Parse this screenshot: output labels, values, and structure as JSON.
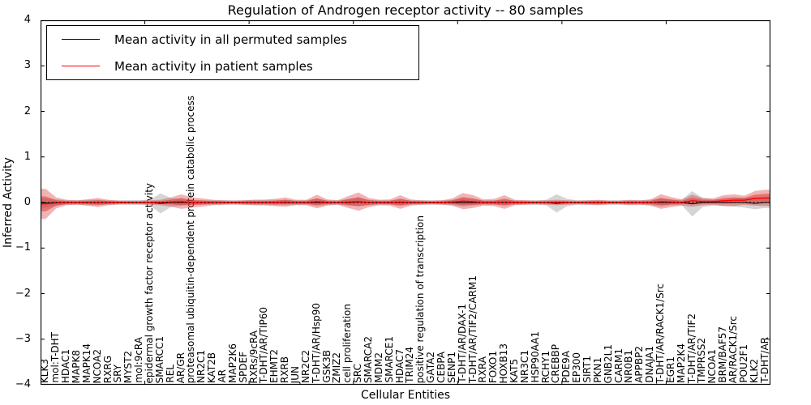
{
  "figure": {
    "title": "Regulation of Androgen receptor activity -- 80 samples",
    "xlabel": "Cellular Entities",
    "ylabel": "Inferred Activity"
  },
  "legend": {
    "items": [
      {
        "label": "Mean activity in all permuted samples",
        "color": "#000000"
      },
      {
        "label": "Mean activity in patient samples",
        "color": "#ff0000"
      }
    ]
  },
  "chart_data": {
    "type": "area",
    "title": "Regulation of Androgen receptor activity -- 80 samples",
    "xlabel": "Cellular Entities",
    "ylabel": "Inferred Activity",
    "ylim": [
      -4,
      4
    ],
    "ytick_labels": [
      "4",
      "3",
      "2",
      "1",
      "0",
      "−1",
      "−2",
      "−3",
      "−4"
    ],
    "grid": false,
    "legend_position": "upper left",
    "zero_line_style": "black dotted",
    "colors": {
      "permuted_band": "#969696",
      "patient_band": "#d62728",
      "permuted_mean": "#000000",
      "patient_mean": "#ff0000"
    },
    "categories": [
      "KLK3",
      "mol:T-DHT",
      "HDAC1",
      "MAPK8",
      "MAPK14",
      "NCOA2",
      "RXRG",
      "SRY",
      "MYST2",
      "mol:9cRA",
      "epidermal growth factor receptor activity",
      "SMARCC1",
      "REL",
      "AR/GR",
      "proteasomal ubiquitin-dependent protein catabolic process",
      "NR2C1",
      "KAT2B",
      "AR",
      "MAP2K6",
      "SPDEF",
      "RXRs/9cRA",
      "T-DHT/AR/TIP60",
      "EHMT2",
      "RXRB",
      "JUN",
      "NR2C2",
      "T-DHT/AR/Hsp90",
      "GSK3B",
      "ZMIZ2",
      "cell proliferation",
      "SRC",
      "SMARCA2",
      "MDM2",
      "SMARCE1",
      "HDAC7",
      "TRIM24",
      "positive regulation of transcription",
      "GATA2",
      "CEBPA",
      "SENP1",
      "T-DHT/AR/DAX-1",
      "T-DHT/AR/TIF2/CARM1",
      "RXRA",
      "FOXO1",
      "HOXB13",
      "KAT5",
      "NR3C1",
      "HSP90AA1",
      "RCHY1",
      "CREBBP",
      "PDE9A",
      "EP300",
      "SIRT1",
      "PKN1",
      "GNB2L1",
      "CARM1",
      "NR0B1",
      "APPBP2",
      "DNAJA1",
      "T-DHT/AR/RACK1/Src",
      "EGR1",
      "MAP2K4",
      "T-DHT/AR/TIF2",
      "TMPRSS2",
      "NCOA1",
      "BRM/BAF57",
      "AR/RACK1/Src",
      "POU2F1",
      "KLK2",
      "T-DHT/AR"
    ],
    "series": [
      {
        "name": "Mean activity in all permuted samples",
        "role": "mean_line",
        "color": "#000000",
        "values": [
          -0.01,
          0,
          0,
          0,
          0,
          0,
          0,
          0,
          0,
          0,
          0,
          -0.02,
          0,
          0,
          0,
          0,
          0,
          0,
          0,
          0,
          0,
          0,
          0,
          0,
          0,
          0,
          0,
          0,
          0,
          0,
          0.01,
          0,
          0,
          0,
          0,
          0,
          0,
          0,
          0,
          0,
          0,
          0,
          0,
          0,
          0,
          0,
          0,
          0,
          0,
          -0.02,
          0,
          0,
          0,
          0,
          0,
          0,
          0,
          0,
          0,
          0,
          0,
          0,
          -0.03,
          0,
          0,
          0,
          0,
          0,
          -0.02,
          0
        ]
      },
      {
        "name": "Mean activity in patient samples",
        "role": "mean_line",
        "color": "#ff0000",
        "values": [
          -0.03,
          -0.01,
          0,
          0,
          0,
          0,
          0,
          0,
          0,
          0,
          0,
          0,
          0.01,
          0.02,
          0,
          0,
          0,
          0,
          0,
          0,
          0,
          0,
          0,
          0.01,
          0,
          0,
          0.02,
          0,
          0,
          0.01,
          0.02,
          0,
          0,
          0,
          0.01,
          0,
          0,
          0,
          0,
          0.01,
          0.03,
          0.02,
          0,
          0,
          0.01,
          0,
          0,
          0,
          0,
          0,
          0,
          0,
          0,
          0,
          0,
          0,
          0,
          0,
          0,
          0.02,
          0.01,
          0,
          0.04,
          0.02,
          0.02,
          0.04,
          0.05,
          0.05,
          0.09,
          0.1
        ]
      },
      {
        "name": "Permuted samples spread (half-width)",
        "role": "band",
        "color": "#969696",
        "values": [
          0.1,
          0.07,
          0.05,
          0.05,
          0.06,
          0.06,
          0.05,
          0.05,
          0.05,
          0.05,
          0.06,
          0.22,
          0.1,
          0.07,
          0.05,
          0.05,
          0.05,
          0.05,
          0.05,
          0.05,
          0.06,
          0.06,
          0.06,
          0.06,
          0.05,
          0.05,
          0.08,
          0.05,
          0.05,
          0.07,
          0.09,
          0.06,
          0.05,
          0.05,
          0.07,
          0.05,
          0.05,
          0.05,
          0.05,
          0.06,
          0.09,
          0.07,
          0.05,
          0.05,
          0.06,
          0.05,
          0.05,
          0.05,
          0.06,
          0.2,
          0.08,
          0.05,
          0.05,
          0.05,
          0.05,
          0.05,
          0.05,
          0.05,
          0.06,
          0.09,
          0.06,
          0.06,
          0.28,
          0.1,
          0.07,
          0.07,
          0.09,
          0.11,
          0.13,
          0.12
        ]
      },
      {
        "name": "Patient samples spread (half-width)",
        "role": "band",
        "color": "#d62728",
        "values": [
          0.33,
          0.12,
          0.06,
          0.05,
          0.07,
          0.1,
          0.06,
          0.04,
          0.04,
          0.04,
          0.05,
          0.06,
          0.1,
          0.16,
          0.11,
          0.09,
          0.06,
          0.05,
          0.04,
          0.05,
          0.06,
          0.06,
          0.08,
          0.1,
          0.06,
          0.06,
          0.15,
          0.07,
          0.05,
          0.13,
          0.2,
          0.1,
          0.06,
          0.07,
          0.15,
          0.07,
          0.05,
          0.04,
          0.05,
          0.08,
          0.18,
          0.14,
          0.07,
          0.08,
          0.15,
          0.06,
          0.05,
          0.04,
          0.05,
          0.06,
          0.05,
          0.04,
          0.05,
          0.06,
          0.04,
          0.04,
          0.06,
          0.05,
          0.07,
          0.16,
          0.11,
          0.07,
          0.13,
          0.08,
          0.07,
          0.12,
          0.13,
          0.1,
          0.16,
          0.18
        ]
      }
    ]
  }
}
